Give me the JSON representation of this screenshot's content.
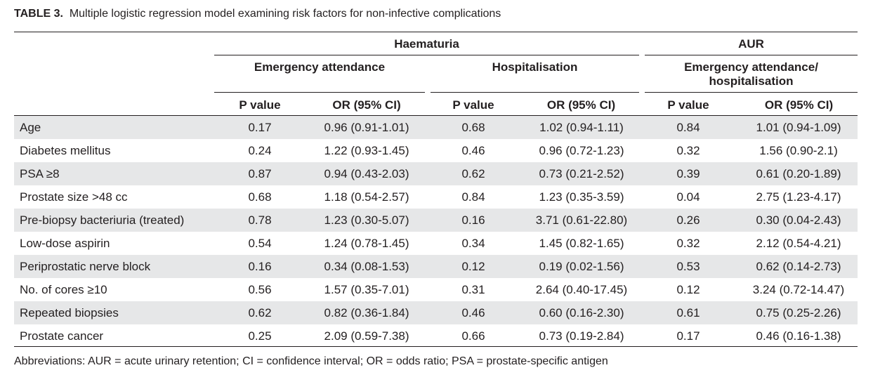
{
  "table": {
    "title_bold": "TABLE 3.",
    "title_rest": "Multiple logistic regression model examining risk factors for non-infective complications",
    "group_headers": [
      "Haematuria",
      "AUR"
    ],
    "sub_headers": [
      "Emergency attendance",
      "Hospitalisation",
      "Emergency attendance/",
      "hospitalisation"
    ],
    "column_headers": [
      "P value",
      "OR (95% CI)",
      "P value",
      "OR (95% CI)",
      "P value",
      "OR (95% CI)"
    ],
    "rows": [
      {
        "label": "Age",
        "cells": [
          "0.17",
          "0.96 (0.91-1.01)",
          "0.68",
          "1.02 (0.94-1.11)",
          "0.84",
          "1.01 (0.94-1.09)"
        ]
      },
      {
        "label": "Diabetes mellitus",
        "cells": [
          "0.24",
          "1.22 (0.93-1.45)",
          "0.46",
          "0.96 (0.72-1.23)",
          "0.32",
          "1.56 (0.90-2.1)"
        ]
      },
      {
        "label": "PSA ≥8",
        "cells": [
          "0.87",
          "0.94 (0.43-2.03)",
          "0.62",
          "0.73 (0.21-2.52)",
          "0.39",
          "0.61 (0.20-1.89)"
        ]
      },
      {
        "label": "Prostate size >48 cc",
        "cells": [
          "0.68",
          "1.18 (0.54-2.57)",
          "0.84",
          "1.23 (0.35-3.59)",
          "0.04",
          "2.75 (1.23-4.17)"
        ]
      },
      {
        "label": "Pre-biopsy bacteriuria (treated)",
        "cells": [
          "0.78",
          "1.23 (0.30-5.07)",
          "0.16",
          "3.71 (0.61-22.80)",
          "0.26",
          "0.30 (0.04-2.43)"
        ]
      },
      {
        "label": "Low-dose aspirin",
        "cells": [
          "0.54",
          "1.24 (0.78-1.45)",
          "0.34",
          "1.45 (0.82-1.65)",
          "0.32",
          "2.12 (0.54-4.21)"
        ]
      },
      {
        "label": "Periprostatic nerve block",
        "cells": [
          "0.16",
          "0.34 (0.08-1.53)",
          "0.12",
          "0.19 (0.02-1.56)",
          "0.53",
          "0.62 (0.14-2.73)"
        ]
      },
      {
        "label": "No. of cores ≥10",
        "cells": [
          "0.56",
          "1.57 (0.35-7.01)",
          "0.31",
          "2.64 (0.40-17.45)",
          "0.12",
          "3.24 (0.72-14.47)"
        ]
      },
      {
        "label": "Repeated biopsies",
        "cells": [
          "0.62",
          "0.82 (0.36-1.84)",
          "0.46",
          "0.60 (0.16-2.30)",
          "0.61",
          "0.75 (0.25-2.26)"
        ]
      },
      {
        "label": "Prostate cancer",
        "cells": [
          "0.25",
          "2.09 (0.59-7.38)",
          "0.66",
          "0.73 (0.19-2.84)",
          "0.17",
          "0.46 (0.16-1.38)"
        ]
      }
    ],
    "footnote": "Abbreviations:  AUR = acute urinary retention; CI = confidence interval; OR = odds ratio; PSA = prostate-specific antigen"
  },
  "colors": {
    "row_shade": "#e6e7e8",
    "text": "#231f20"
  }
}
